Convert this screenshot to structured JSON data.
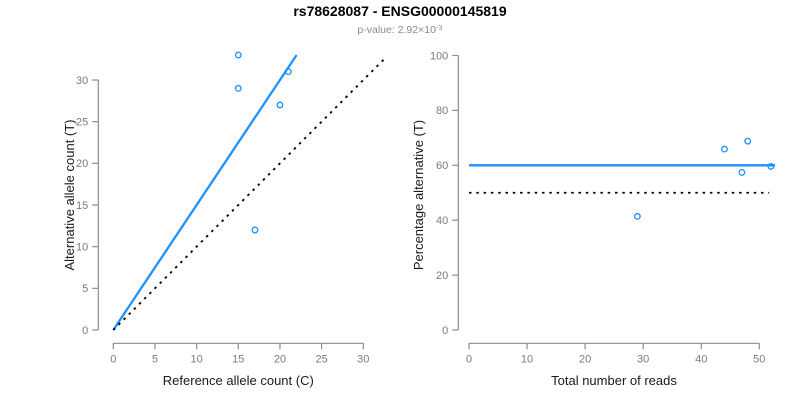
{
  "header": {
    "title": "rs78628087 - ENSG00000145819",
    "p_value_base": "p-value: 2.92×10",
    "p_value_exponent": "-3"
  },
  "colors": {
    "accent_blue": "#1E90FF",
    "dotted_line": "#000000",
    "axis_line": "#8c8c8c",
    "tick_label": "#7a7a7a",
    "axis_title": "#1a1a1a"
  },
  "chart_data": [
    {
      "type": "scatter",
      "name": "allele-counts",
      "xlabel": "Reference allele count (C)",
      "ylabel": "Alternative allele count (T)",
      "xlim": [
        0,
        30
      ],
      "ylim": [
        0,
        30
      ],
      "xticks": [
        0,
        5,
        10,
        15,
        20,
        25,
        30
      ],
      "yticks": [
        0,
        5,
        10,
        15,
        20,
        25,
        30
      ],
      "grid": false,
      "points": [
        [
          15,
          33
        ],
        [
          15,
          29
        ],
        [
          17,
          12
        ],
        [
          20,
          27
        ],
        [
          21,
          31
        ]
      ],
      "lines": [
        {
          "name": "fit-line",
          "style": "solid",
          "color": "#1E90FF",
          "from": [
            0,
            0
          ],
          "to": [
            22,
            33
          ]
        },
        {
          "name": "identity-line",
          "style": "dotted",
          "color": "#000000",
          "from": [
            0,
            0
          ],
          "to": [
            32.5,
            32.5
          ]
        }
      ]
    },
    {
      "type": "scatter",
      "name": "percentage-vs-reads",
      "xlabel": "Total number of reads",
      "ylabel": "Percentage alternative (T)",
      "xlim": [
        0,
        50
      ],
      "ylim": [
        0,
        100
      ],
      "xticks": [
        0,
        10,
        20,
        30,
        40,
        50
      ],
      "yticks": [
        0,
        20,
        40,
        60,
        80,
        100
      ],
      "grid": false,
      "points": [
        [
          29,
          41.4
        ],
        [
          44,
          65.9
        ],
        [
          47,
          57.4
        ],
        [
          48,
          68.8
        ],
        [
          52,
          59.6
        ]
      ],
      "lines": [
        {
          "name": "mean-percentage-line",
          "style": "solid",
          "color": "#1E90FF",
          "from": [
            0,
            60
          ],
          "to": [
            52.7,
            60
          ]
        },
        {
          "name": "fifty-percent-line",
          "style": "dotted",
          "color": "#000000",
          "from": [
            0,
            50
          ],
          "to": [
            51.7,
            50
          ]
        }
      ]
    }
  ]
}
